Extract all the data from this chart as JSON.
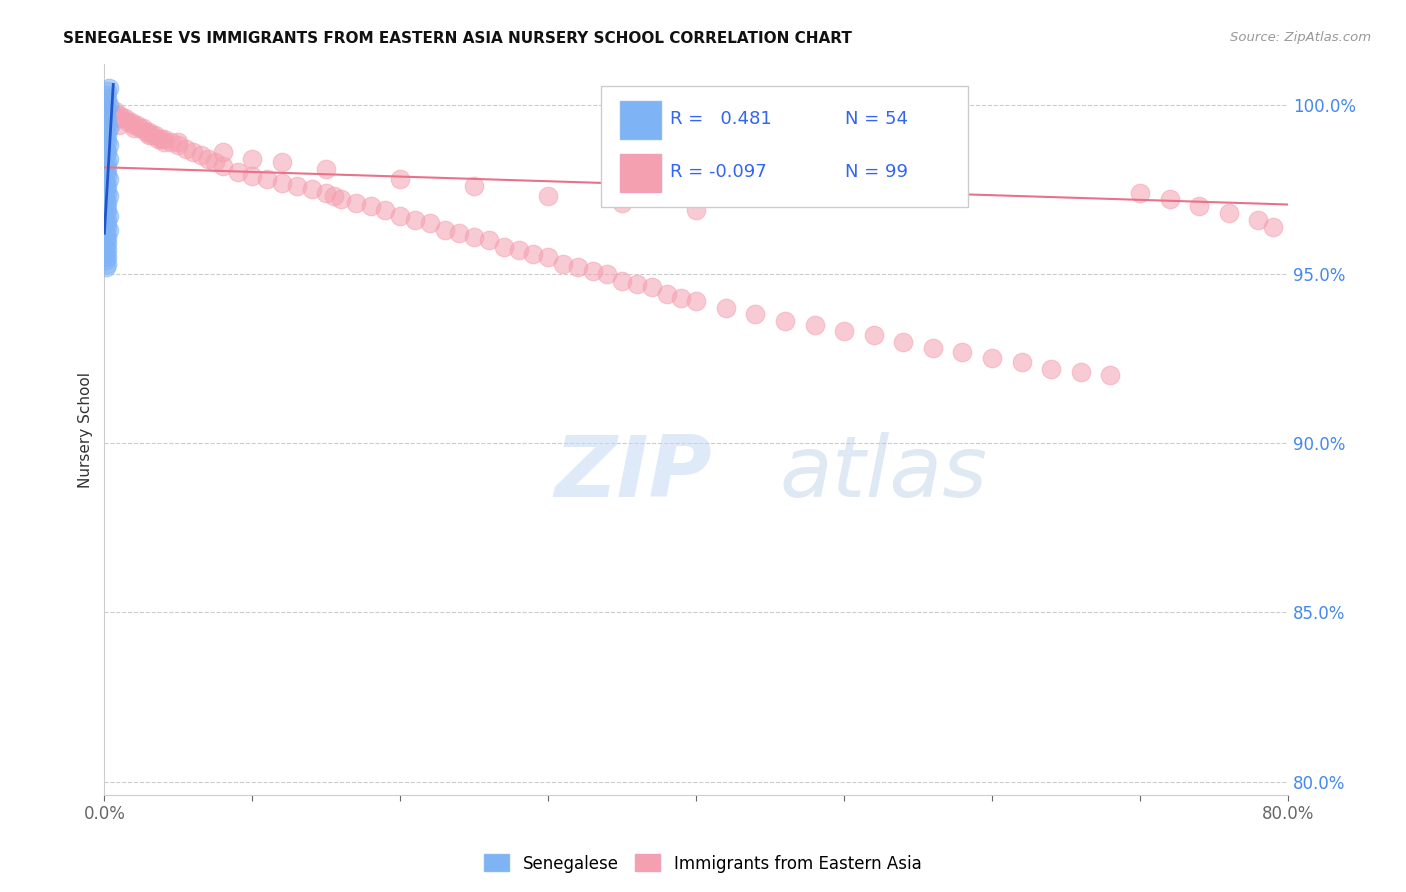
{
  "title": "SENEGALESE VS IMMIGRANTS FROM EASTERN ASIA NURSERY SCHOOL CORRELATION CHART",
  "source": "Source: ZipAtlas.com",
  "ylabel": "Nursery School",
  "xlim": [
    0.0,
    0.8
  ],
  "ylim": [
    0.796,
    1.012
  ],
  "yticks": [
    0.8,
    0.85,
    0.9,
    0.95,
    1.0
  ],
  "ytick_labels": [
    "80.0%",
    "85.0%",
    "90.0%",
    "95.0%",
    "100.0%"
  ],
  "xticks": [
    0.0,
    0.1,
    0.2,
    0.3,
    0.4,
    0.5,
    0.6,
    0.7,
    0.8
  ],
  "xtick_labels": [
    "0.0%",
    "",
    "",
    "",
    "",
    "",
    "",
    "",
    "80.0%"
  ],
  "legend_r1": "R =   0.481",
  "legend_n1": "N = 54",
  "legend_r2": "R = -0.097",
  "legend_n2": "N = 99",
  "blue_color": "#7EB3F5",
  "pink_color": "#F4A0B0",
  "trendline_blue": "#2255CC",
  "trendline_pink": "#E8728A",
  "watermark_zip": "ZIP",
  "watermark_atlas": "atlas",
  "blue_scatter_x": [
    0.001,
    0.002,
    0.001,
    0.003,
    0.002,
    0.001,
    0.002,
    0.003,
    0.001,
    0.002,
    0.001,
    0.002,
    0.003,
    0.001,
    0.002,
    0.001,
    0.002,
    0.003,
    0.001,
    0.002,
    0.001,
    0.003,
    0.002,
    0.001,
    0.002,
    0.001,
    0.002,
    0.003,
    0.001,
    0.002,
    0.001,
    0.002,
    0.003,
    0.001,
    0.002,
    0.001,
    0.002,
    0.001,
    0.003,
    0.002,
    0.001,
    0.002,
    0.003,
    0.001,
    0.002,
    0.001,
    0.002,
    0.001,
    0.002,
    0.001,
    0.002,
    0.001,
    0.002,
    0.001
  ],
  "blue_scatter_y": [
    1.003,
    1.002,
    1.001,
    1.0,
    0.999,
    0.998,
    1.004,
    1.005,
    0.997,
    0.996,
    0.995,
    0.994,
    0.993,
    0.992,
    0.991,
    0.99,
    0.989,
    0.988,
    0.987,
    0.986,
    0.985,
    0.984,
    0.983,
    0.982,
    0.981,
    0.98,
    0.979,
    0.978,
    0.977,
    0.976,
    0.975,
    0.974,
    0.973,
    0.972,
    0.971,
    0.97,
    0.969,
    0.968,
    0.967,
    0.966,
    0.965,
    0.964,
    0.963,
    0.962,
    0.961,
    0.96,
    0.959,
    0.958,
    0.957,
    0.956,
    0.955,
    0.954,
    0.953,
    0.952
  ],
  "pink_scatter_x": [
    0.001,
    0.002,
    0.003,
    0.004,
    0.005,
    0.006,
    0.007,
    0.008,
    0.009,
    0.01,
    0.012,
    0.014,
    0.016,
    0.018,
    0.02,
    0.022,
    0.024,
    0.026,
    0.028,
    0.03,
    0.032,
    0.034,
    0.036,
    0.038,
    0.04,
    0.045,
    0.05,
    0.055,
    0.06,
    0.065,
    0.07,
    0.075,
    0.08,
    0.09,
    0.1,
    0.11,
    0.12,
    0.13,
    0.14,
    0.15,
    0.155,
    0.16,
    0.17,
    0.18,
    0.19,
    0.2,
    0.21,
    0.22,
    0.23,
    0.24,
    0.25,
    0.26,
    0.27,
    0.28,
    0.29,
    0.3,
    0.31,
    0.32,
    0.33,
    0.34,
    0.35,
    0.36,
    0.37,
    0.38,
    0.39,
    0.4,
    0.42,
    0.44,
    0.46,
    0.48,
    0.5,
    0.52,
    0.54,
    0.56,
    0.58,
    0.6,
    0.62,
    0.64,
    0.66,
    0.68,
    0.7,
    0.72,
    0.74,
    0.76,
    0.78,
    0.79,
    0.005,
    0.01,
    0.02,
    0.03,
    0.04,
    0.05,
    0.08,
    0.1,
    0.12,
    0.15,
    0.2,
    0.25,
    0.3,
    0.35,
    0.4
  ],
  "pink_scatter_y": [
    0.999,
    0.998,
    0.998,
    0.997,
    0.997,
    0.996,
    0.998,
    0.997,
    0.996,
    0.997,
    0.996,
    0.996,
    0.995,
    0.995,
    0.994,
    0.994,
    0.993,
    0.993,
    0.992,
    0.992,
    0.991,
    0.991,
    0.99,
    0.99,
    0.989,
    0.989,
    0.988,
    0.987,
    0.986,
    0.985,
    0.984,
    0.983,
    0.982,
    0.98,
    0.979,
    0.978,
    0.977,
    0.976,
    0.975,
    0.974,
    0.973,
    0.972,
    0.971,
    0.97,
    0.969,
    0.967,
    0.966,
    0.965,
    0.963,
    0.962,
    0.961,
    0.96,
    0.958,
    0.957,
    0.956,
    0.955,
    0.953,
    0.952,
    0.951,
    0.95,
    0.948,
    0.947,
    0.946,
    0.944,
    0.943,
    0.942,
    0.94,
    0.938,
    0.936,
    0.935,
    0.933,
    0.932,
    0.93,
    0.928,
    0.927,
    0.925,
    0.924,
    0.922,
    0.921,
    0.92,
    0.974,
    0.972,
    0.97,
    0.968,
    0.966,
    0.964,
    0.995,
    0.994,
    0.993,
    0.991,
    0.99,
    0.989,
    0.986,
    0.984,
    0.983,
    0.981,
    0.978,
    0.976,
    0.973,
    0.971,
    0.969
  ],
  "pink_trend_x": [
    0.0,
    0.8
  ],
  "pink_trend_y": [
    0.9815,
    0.9705
  ],
  "blue_trend_x": [
    0.0,
    0.006
  ],
  "blue_trend_y": [
    0.962,
    1.006
  ]
}
